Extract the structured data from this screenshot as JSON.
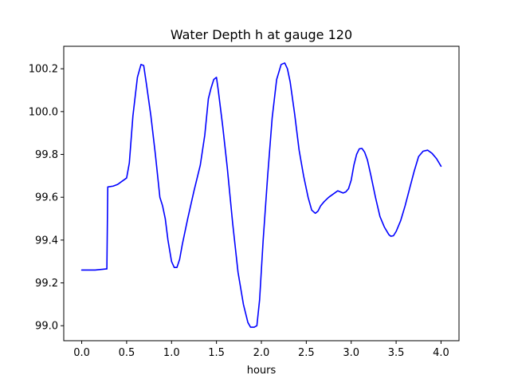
{
  "chart_data": {
    "type": "line",
    "title": "Water Depth h at gauge 120",
    "xlabel": "hours",
    "ylabel": "",
    "xlim": [
      -0.2,
      4.2
    ],
    "ylim": [
      98.93,
      100.305
    ],
    "xticks": [
      0.0,
      0.5,
      1.0,
      1.5,
      2.0,
      2.5,
      3.0,
      3.5,
      4.0
    ],
    "xtick_labels": [
      "0.0",
      "0.5",
      "1.0",
      "1.5",
      "2.0",
      "2.5",
      "3.0",
      "3.5",
      "4.0"
    ],
    "yticks": [
      99.0,
      99.2,
      99.4,
      99.6,
      99.8,
      100.0,
      100.2
    ],
    "ytick_labels": [
      "99.0",
      "99.2",
      "99.4",
      "99.6",
      "99.8",
      "100.0",
      "100.2"
    ],
    "grid": false,
    "series": [
      {
        "name": "",
        "color": "#0000ff",
        "x": [
          0.0,
          0.15,
          0.27,
          0.28,
          0.29,
          0.35,
          0.4,
          0.45,
          0.5,
          0.53,
          0.57,
          0.62,
          0.66,
          0.69,
          0.72,
          0.77,
          0.82,
          0.87,
          0.9,
          0.93,
          0.96,
          1.0,
          1.03,
          1.06,
          1.09,
          1.12,
          1.18,
          1.25,
          1.32,
          1.37,
          1.41,
          1.44,
          1.47,
          1.5,
          1.52,
          1.57,
          1.62,
          1.68,
          1.74,
          1.8,
          1.85,
          1.88,
          1.92,
          1.95,
          1.98,
          2.02,
          2.07,
          2.12,
          2.17,
          2.22,
          2.26,
          2.29,
          2.32,
          2.37,
          2.42,
          2.47,
          2.52,
          2.56,
          2.6,
          2.63,
          2.66,
          2.7,
          2.75,
          2.8,
          2.85,
          2.88,
          2.91,
          2.94,
          2.97,
          3.0,
          3.03,
          3.06,
          3.09,
          3.12,
          3.15,
          3.18,
          3.22,
          3.27,
          3.32,
          3.37,
          3.42,
          3.44,
          3.47,
          3.5,
          3.55,
          3.6,
          3.65,
          3.7,
          3.75,
          3.8,
          3.85,
          3.9,
          3.95,
          4.0
        ],
        "y": [
          99.26,
          99.26,
          99.265,
          99.265,
          99.648,
          99.652,
          99.66,
          99.675,
          99.69,
          99.76,
          99.98,
          100.16,
          100.22,
          100.215,
          100.13,
          99.98,
          99.8,
          99.6,
          99.56,
          99.5,
          99.4,
          99.3,
          99.272,
          99.272,
          99.31,
          99.38,
          99.5,
          99.63,
          99.75,
          99.89,
          100.06,
          100.11,
          100.15,
          100.16,
          100.1,
          99.93,
          99.74,
          99.48,
          99.25,
          99.1,
          99.015,
          98.993,
          98.993,
          99.0,
          99.12,
          99.4,
          99.7,
          99.97,
          100.15,
          100.22,
          100.227,
          100.2,
          100.14,
          99.99,
          99.82,
          99.7,
          99.6,
          99.54,
          99.525,
          99.535,
          99.56,
          99.58,
          99.6,
          99.615,
          99.63,
          99.625,
          99.62,
          99.625,
          99.64,
          99.68,
          99.75,
          99.8,
          99.826,
          99.828,
          99.81,
          99.775,
          99.7,
          99.6,
          99.51,
          99.46,
          99.425,
          99.418,
          99.42,
          99.44,
          99.49,
          99.56,
          99.64,
          99.72,
          99.79,
          99.815,
          99.82,
          99.805,
          99.78,
          99.745
        ]
      }
    ]
  }
}
